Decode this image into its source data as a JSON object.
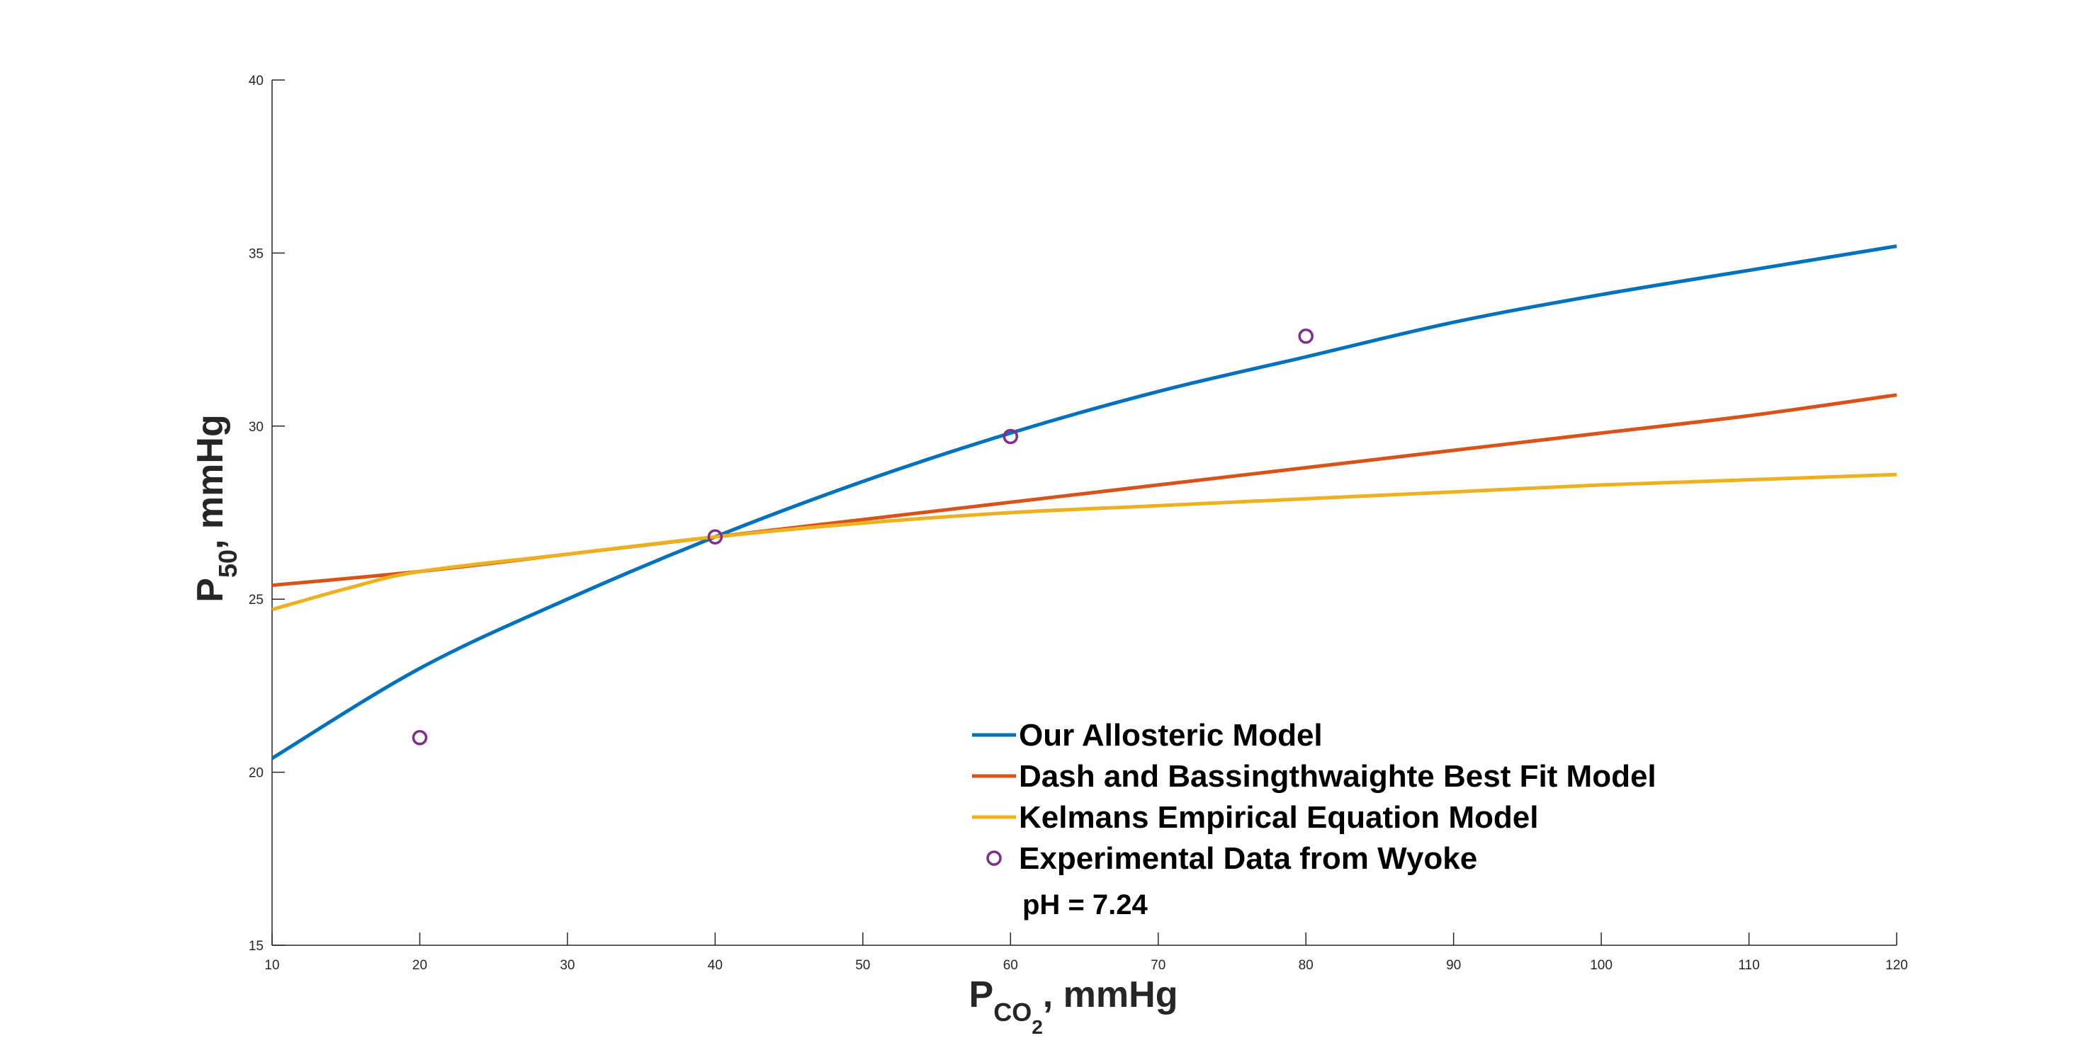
{
  "chart_data": {
    "type": "line",
    "xlabel": {
      "main": "P",
      "sub1": "CO",
      "sub2": "2",
      "rest": ", mmHg"
    },
    "ylabel": {
      "main": "P",
      "sub": "50",
      "rest": ", mmHg"
    },
    "xlim": [
      10,
      120
    ],
    "ylim": [
      15,
      40
    ],
    "xticks": [
      "10",
      "20",
      "30",
      "40",
      "50",
      "60",
      "70",
      "80",
      "90",
      "100",
      "110",
      "120"
    ],
    "yticks": [
      "15",
      "20",
      "25",
      "30",
      "35",
      "40"
    ],
    "grid": false,
    "legend_position": "bottom-right",
    "series": [
      {
        "name": "Our Allosteric Model",
        "kind": "line",
        "color": "#0072BD",
        "x": [
          10,
          20,
          30,
          40,
          50,
          60,
          70,
          80,
          90,
          100,
          110,
          120
        ],
        "y": [
          20.4,
          23.0,
          25.0,
          26.8,
          28.4,
          29.8,
          31.0,
          32.0,
          33.0,
          33.8,
          34.5,
          35.2
        ]
      },
      {
        "name": "Dash and Bassingthwaighte Best Fit Model",
        "kind": "line",
        "color": "#D95319",
        "x": [
          10,
          20,
          30,
          40,
          50,
          60,
          70,
          80,
          90,
          100,
          110,
          120
        ],
        "y": [
          25.4,
          25.8,
          26.3,
          26.8,
          27.3,
          27.8,
          28.3,
          28.8,
          29.3,
          29.8,
          30.3,
          30.9
        ]
      },
      {
        "name": "Kelmans Empirical Equation Model",
        "kind": "line",
        "color": "#EDB120",
        "x": [
          10,
          15,
          20,
          30,
          40,
          50,
          60,
          70,
          80,
          90,
          100,
          110,
          120
        ],
        "y": [
          24.7,
          25.3,
          25.8,
          26.3,
          26.8,
          27.2,
          27.5,
          27.7,
          27.9,
          28.1,
          28.3,
          28.45,
          28.6
        ]
      },
      {
        "name": "Experimental Data from Wyoke",
        "kind": "scatter",
        "color": "#7E2F8E",
        "x": [
          20,
          40,
          60,
          80
        ],
        "y": [
          21.0,
          26.8,
          29.7,
          32.6
        ]
      }
    ],
    "annotation": "pH = 7.24"
  }
}
